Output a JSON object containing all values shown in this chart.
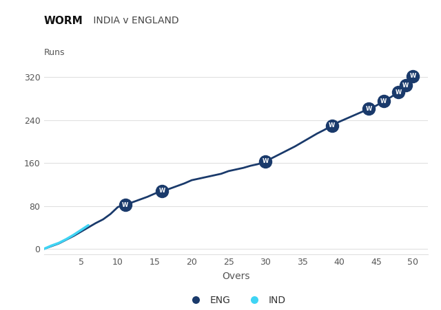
{
  "title_bold": "WORM",
  "title_light": " INDIA v ENGLAND",
  "xlabel": "Overs",
  "ylabel": "Runs",
  "background_color": "#ffffff",
  "eng_color": "#1a3a6b",
  "ind_color": "#3fd4f4",
  "grid_color": "#e0e0e0",
  "ylim": [
    -10,
    360
  ],
  "xlim": [
    0,
    52
  ],
  "yticks": [
    0,
    80,
    160,
    240,
    320
  ],
  "xticks": [
    5,
    10,
    15,
    20,
    25,
    30,
    35,
    40,
    45,
    50
  ],
  "eng_overs": [
    0,
    1,
    2,
    3,
    4,
    5,
    6,
    7,
    8,
    9,
    10,
    11,
    12,
    13,
    14,
    15,
    16,
    17,
    18,
    19,
    20,
    21,
    22,
    23,
    24,
    25,
    26,
    27,
    28,
    29,
    30,
    31,
    32,
    33,
    34,
    35,
    36,
    37,
    38,
    39,
    40,
    41,
    42,
    43,
    44,
    45,
    46,
    47,
    48,
    49,
    50
  ],
  "eng_runs": [
    0,
    5,
    10,
    17,
    24,
    32,
    40,
    48,
    55,
    65,
    78,
    82,
    87,
    92,
    97,
    103,
    108,
    112,
    117,
    122,
    128,
    131,
    134,
    137,
    140,
    145,
    148,
    151,
    155,
    158,
    163,
    170,
    177,
    184,
    191,
    199,
    207,
    215,
    222,
    230,
    237,
    243,
    249,
    255,
    261,
    267,
    275,
    283,
    292,
    305,
    322
  ],
  "ind_overs": [
    0,
    1,
    2,
    3,
    4,
    5,
    6
  ],
  "ind_runs": [
    0,
    6,
    11,
    18,
    26,
    35,
    44
  ],
  "wickets_eng": [
    {
      "over": 11,
      "runs": 82
    },
    {
      "over": 16,
      "runs": 108
    },
    {
      "over": 30,
      "runs": 163
    },
    {
      "over": 39,
      "runs": 230
    },
    {
      "over": 44,
      "runs": 261
    },
    {
      "over": 46,
      "runs": 275
    },
    {
      "over": 48,
      "runs": 292
    },
    {
      "over": 49,
      "runs": 305
    },
    {
      "over": 50,
      "runs": 322
    }
  ],
  "wicket_circle_color": "#1a3a6b",
  "wicket_text_color": "#ffffff",
  "legend_eng": "ENG",
  "legend_ind": "IND",
  "tick_color": "#555555",
  "label_color": "#555555"
}
